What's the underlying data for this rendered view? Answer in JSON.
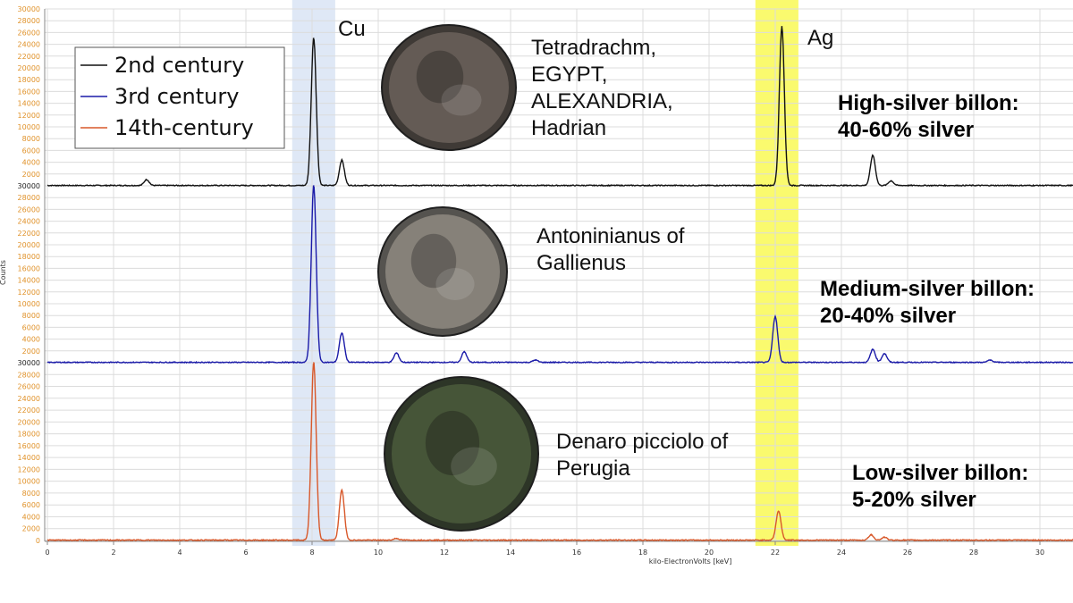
{
  "chart_data": {
    "type": "line",
    "xlabel": "kilo-ElectronVolts [keV]",
    "ylabel": "Counts",
    "xlim": [
      0,
      31
    ],
    "x_ticks": [
      0,
      2,
      4,
      6,
      8,
      10,
      12,
      14,
      16,
      18,
      20,
      22,
      24,
      26,
      28,
      30
    ],
    "panels": [
      {
        "name": "2nd century",
        "color": "#111111",
        "ylim": [
          0,
          30000
        ],
        "y_ticks": [
          2000,
          4000,
          6000,
          8000,
          10000,
          12000,
          14000,
          16000,
          18000,
          20000,
          22000,
          24000,
          26000,
          28000,
          30000
        ],
        "peaks": [
          {
            "x": 3.0,
            "y": 1000
          },
          {
            "x": 8.05,
            "y": 25000
          },
          {
            "x": 8.9,
            "y": 4300
          },
          {
            "x": 22.2,
            "y": 27000
          },
          {
            "x": 24.95,
            "y": 5100
          },
          {
            "x": 25.5,
            "y": 800
          }
        ]
      },
      {
        "name": "3rd century",
        "color": "#1a1aa8",
        "ylim": [
          0,
          30000
        ],
        "y_ticks": [
          2000,
          4000,
          6000,
          8000,
          10000,
          12000,
          14000,
          16000,
          18000,
          20000,
          22000,
          24000,
          26000,
          28000,
          30000
        ],
        "peaks": [
          {
            "x": 8.05,
            "y": 30000
          },
          {
            "x": 8.9,
            "y": 5000
          },
          {
            "x": 10.55,
            "y": 1600
          },
          {
            "x": 12.6,
            "y": 1800
          },
          {
            "x": 14.75,
            "y": 400
          },
          {
            "x": 22.0,
            "y": 7800
          },
          {
            "x": 24.95,
            "y": 2200
          },
          {
            "x": 25.3,
            "y": 1500
          },
          {
            "x": 28.5,
            "y": 400
          }
        ]
      },
      {
        "name": "14th-century",
        "color": "#d8582a",
        "ylim": [
          0,
          30000
        ],
        "y_ticks": [
          0,
          2000,
          4000,
          6000,
          8000,
          10000,
          12000,
          14000,
          16000,
          18000,
          20000,
          22000,
          24000,
          26000,
          28000,
          30000
        ],
        "peaks": [
          {
            "x": 8.05,
            "y": 30000
          },
          {
            "x": 8.9,
            "y": 8500
          },
          {
            "x": 10.55,
            "y": 300
          },
          {
            "x": 22.1,
            "y": 4900
          },
          {
            "x": 24.9,
            "y": 900
          },
          {
            "x": 25.3,
            "y": 500
          }
        ]
      }
    ],
    "highlight_bands": [
      {
        "label": "Cu",
        "x_range": [
          7.4,
          8.7
        ],
        "color": "#dfe8f6"
      },
      {
        "label": "Ag",
        "x_range": [
          21.4,
          22.7
        ],
        "color": "#fafa6e"
      }
    ],
    "legend": {
      "placement": "top-left",
      "entries": [
        "2nd century",
        "3rd century",
        "14th-century"
      ]
    },
    "annotations": {
      "coin_names": [
        "Tetradrachm,\nEGYPT,\nALEXANDRIA,\nHadrian",
        "Antoninianus of\nGallienus",
        "Denaro picciolo of\nPerugia"
      ],
      "silver_grades": [
        "High-silver billon:\n40-60% silver",
        "Medium-silver billon:\n20-40% silver",
        "Low-silver billon:\n5-20% silver"
      ]
    }
  },
  "colors": {
    "grid": "#dcdcdc",
    "tick_label": "#e0922a",
    "cu_band": "#dfe8f6",
    "ag_band": "#fafa6e"
  }
}
